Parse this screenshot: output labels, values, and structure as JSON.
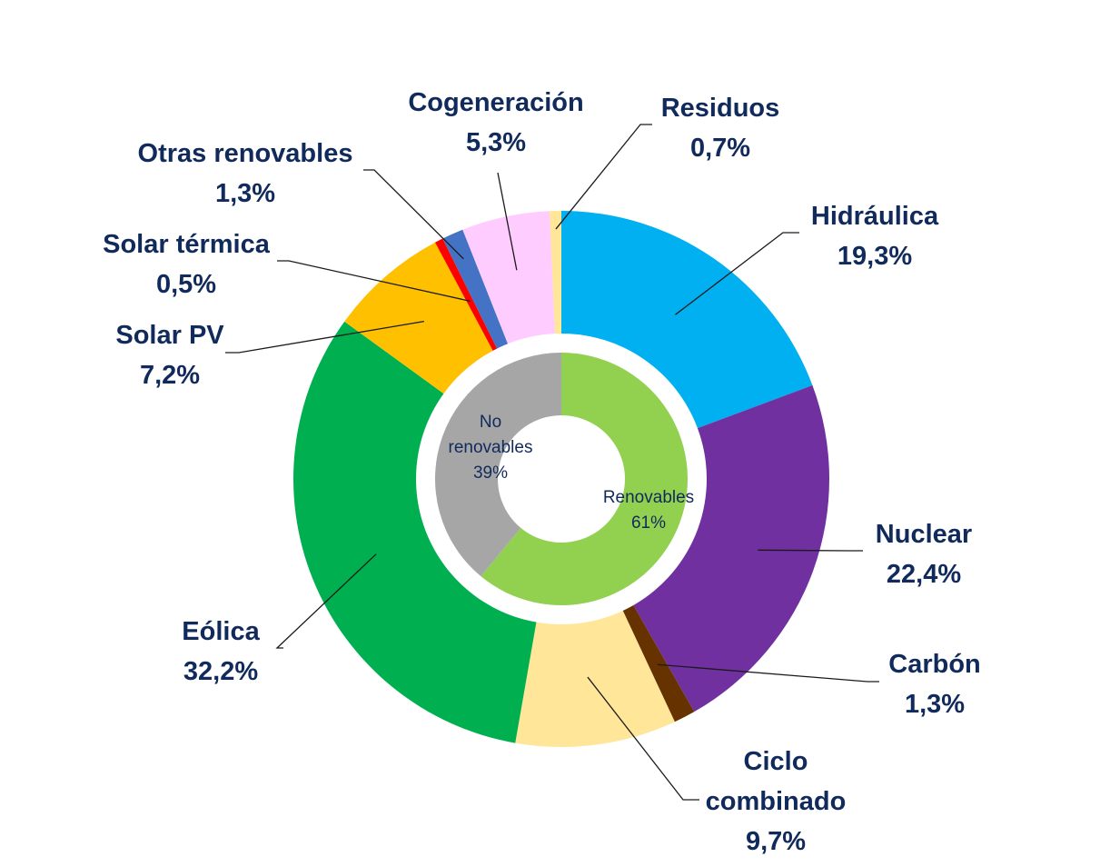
{
  "chart_data": {
    "type": "pie",
    "variant": "nested-donut",
    "start_angle_deg": 0,
    "direction": "clockwise",
    "outer_ring": [
      {
        "name": "Hidráulica",
        "value": 19.3,
        "value_label": "19,3%",
        "color": "#00b0f0"
      },
      {
        "name": "Nuclear",
        "value": 22.4,
        "value_label": "22,4%",
        "color": "#7030a0"
      },
      {
        "name": "Carbón",
        "value": 1.3,
        "value_label": "1,3%",
        "color": "#663300"
      },
      {
        "name": "Ciclo combinado",
        "value": 9.7,
        "value_label": "9,7%",
        "color": "#ffe699"
      },
      {
        "name": "Eólica",
        "value": 32.2,
        "value_label": "32,2%",
        "color": "#00b050"
      },
      {
        "name": "Solar PV",
        "value": 7.2,
        "value_label": "7,2%",
        "color": "#ffc000"
      },
      {
        "name": "Solar térmica",
        "value": 0.5,
        "value_label": "0,5%",
        "color": "#ff0000"
      },
      {
        "name": "Otras renovables",
        "value": 1.3,
        "value_label": "1,3%",
        "color": "#4472c4"
      },
      {
        "name": "Cogeneración",
        "value": 5.3,
        "value_label": "5,3%",
        "color": "#ffccff"
      },
      {
        "name": "Residuos",
        "value": 0.7,
        "value_label": "0,7%",
        "color": "#ffe699"
      }
    ],
    "inner_ring": [
      {
        "name": "Renovables",
        "value": 61,
        "value_label": "61%",
        "color": "#92d050"
      },
      {
        "name": "No renovables",
        "value": 39,
        "value_label": "39%",
        "color": "#a6a6a6"
      }
    ]
  }
}
